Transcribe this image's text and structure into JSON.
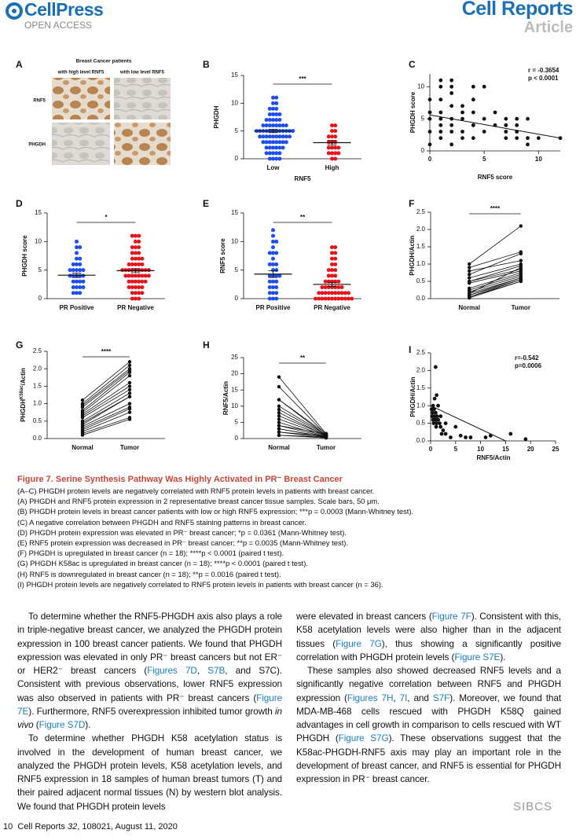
{
  "header": {
    "logo": "CellPress",
    "logo_sub": "OPEN ACCESS",
    "journal": "Cell Reports",
    "article_type": "Article"
  },
  "panel_a": {
    "panel": "A",
    "title": "Breast Cancer patients",
    "col_high": "with high level RNF5",
    "col_low": "with low level RNF5",
    "row_1": "RNF5",
    "row_2": "PHGDH"
  },
  "chart_data": [
    {
      "type": "strip",
      "panel": "B",
      "ylabel": "PHGDH",
      "xlabel": "RNF5",
      "significance": "***",
      "categories": [
        "Low",
        "High"
      ],
      "colors": [
        "#1d4ff0",
        "#e8141c"
      ],
      "values": [
        [
          11,
          11,
          10,
          10,
          9,
          9,
          9,
          8,
          8,
          8,
          8,
          7,
          7,
          7,
          7,
          7,
          6,
          6,
          6,
          6,
          6,
          6,
          6,
          6,
          5,
          5,
          5,
          5,
          5,
          5,
          5,
          5,
          5,
          5,
          5,
          5,
          4,
          4,
          4,
          4,
          4,
          4,
          4,
          4,
          4,
          4,
          3,
          3,
          3,
          3,
          3,
          3,
          3,
          3,
          2,
          2,
          2,
          2,
          2,
          2,
          1,
          1,
          1,
          1,
          1,
          0,
          0,
          0,
          0
        ],
        [
          6,
          6,
          5,
          5,
          4,
          4,
          4,
          3,
          3,
          3,
          2,
          2,
          2,
          2,
          1,
          1,
          1,
          1,
          0,
          0
        ]
      ],
      "means": [
        5.0,
        2.9
      ],
      "sem": [
        0.3,
        0.4
      ],
      "ylim": [
        0,
        15
      ],
      "yticks": [
        0,
        5,
        10,
        15
      ]
    },
    {
      "type": "scatter",
      "panel": "C",
      "ylabel": "PHGDH score",
      "xlabel": "RNF5 score",
      "annotations": [
        "r = -0.3654",
        "p < 0.0001"
      ],
      "color": "#111111",
      "x": [
        0,
        0,
        0,
        0,
        1,
        1,
        1,
        1,
        1,
        1,
        1,
        1,
        2,
        2,
        2,
        2,
        2,
        2,
        2,
        3,
        3,
        3,
        3,
        3,
        4,
        4,
        4,
        4,
        4,
        5,
        5,
        5,
        6,
        6,
        7,
        7,
        7,
        7,
        8,
        8,
        8,
        8,
        9,
        9,
        9,
        10,
        12,
        0,
        2,
        4
      ],
      "y": [
        8,
        5,
        3,
        1,
        11,
        10,
        8,
        6,
        5,
        4,
        3,
        2,
        11,
        9,
        7,
        5,
        4,
        3,
        1,
        7,
        6,
        5,
        3,
        2,
        10,
        8,
        6,
        4,
        2,
        10,
        5,
        3,
        6,
        4,
        5,
        4,
        3,
        2,
        5,
        4,
        3,
        2,
        5,
        2,
        1,
        2,
        2,
        6,
        10,
        4
      ],
      "trendline": {
        "x": [
          0,
          12
        ],
        "y": [
          5.6,
          2.0
        ]
      },
      "xlim": [
        0,
        12
      ],
      "xticks": [
        0,
        5,
        10
      ],
      "ylim": [
        0,
        12
      ],
      "yticks": [
        0,
        5,
        10
      ]
    },
    {
      "type": "strip",
      "panel": "D",
      "ylabel": "PHGDH score",
      "significance": "*",
      "categories": [
        "PR Positive",
        "PR Negative"
      ],
      "colors": [
        "#1d4ff0",
        "#e8141c"
      ],
      "values": [
        [
          10,
          9,
          9,
          8,
          7,
          7,
          6,
          6,
          6,
          5,
          5,
          5,
          5,
          5,
          4,
          4,
          4,
          4,
          4,
          3,
          3,
          3,
          3,
          2,
          2,
          2,
          2,
          1,
          1,
          1
        ],
        [
          11,
          11,
          11,
          10,
          10,
          9,
          9,
          9,
          8,
          8,
          8,
          7,
          7,
          7,
          7,
          6,
          6,
          6,
          6,
          6,
          5,
          5,
          5,
          5,
          5,
          5,
          5,
          5,
          5,
          4,
          4,
          4,
          4,
          4,
          4,
          4,
          4,
          3,
          3,
          3,
          3,
          3,
          3,
          2,
          2,
          2,
          2,
          2,
          1,
          1,
          1,
          1,
          0,
          0,
          0
        ]
      ],
      "means": [
        4.1,
        4.9
      ],
      "sem": [
        0.4,
        0.35
      ],
      "ylim": [
        0,
        15
      ],
      "yticks": [
        0,
        5,
        10,
        15
      ]
    },
    {
      "type": "strip",
      "panel": "E",
      "ylabel": "RNF5 score",
      "significance": "**",
      "categories": [
        "PR Positive",
        "PR Negative"
      ],
      "colors": [
        "#1d4ff0",
        "#e8141c"
      ],
      "values": [
        [
          12,
          11,
          10,
          10,
          9,
          8,
          8,
          8,
          7,
          6,
          6,
          6,
          5,
          5,
          4,
          4,
          4,
          4,
          3,
          3,
          3,
          2,
          2,
          2,
          1,
          1,
          1,
          0,
          0,
          0
        ],
        [
          9,
          9,
          8,
          8,
          7,
          7,
          6,
          6,
          5,
          5,
          5,
          4,
          4,
          4,
          3,
          3,
          3,
          3,
          3,
          2,
          2,
          2,
          2,
          2,
          2,
          2,
          1,
          1,
          1,
          1,
          1,
          1,
          1,
          1,
          1,
          1,
          0,
          0,
          0,
          0,
          0,
          0,
          0,
          0,
          0,
          0,
          0,
          0
        ]
      ],
      "means": [
        4.3,
        2.5
      ],
      "sem": [
        0.6,
        0.35
      ],
      "ylim": [
        0,
        15
      ],
      "yticks": [
        0,
        5,
        10,
        15
      ]
    },
    {
      "type": "paired",
      "panel": "F",
      "ylabel": "PHGDH/Actin",
      "significance": "****",
      "categories": [
        "Normal",
        "Tumor"
      ],
      "color": "#111111",
      "values": [
        [
          1.0,
          2.1
        ],
        [
          0.9,
          1.35
        ],
        [
          0.7,
          1.3
        ],
        [
          0.6,
          1.0
        ],
        [
          0.5,
          0.95
        ],
        [
          0.5,
          0.85
        ],
        [
          0.45,
          0.8
        ],
        [
          0.3,
          0.75
        ],
        [
          0.25,
          0.7
        ],
        [
          0.2,
          0.65
        ],
        [
          0.15,
          0.6
        ],
        [
          0.1,
          0.6
        ],
        [
          0.1,
          0.55
        ],
        [
          0.05,
          0.55
        ],
        [
          0.05,
          0.5
        ],
        [
          0.02,
          0.5
        ],
        [
          0.15,
          0.9
        ],
        [
          0.8,
          1.1
        ]
      ],
      "ylim": [
        0,
        2.5
      ],
      "yticks": [
        {
          "value": 0,
          "label": "0.0"
        },
        0.5,
        {
          "value": 1,
          "label": "1.0"
        },
        1.5,
        {
          "value": 2,
          "label": "2.0"
        },
        2.5
      ]
    },
    {
      "type": "paired",
      "panel": "G",
      "ylabel": "PHGDH",
      "ylabel_sup": "K58ac",
      "ylabel_suffix": "/Actin",
      "significance": "****",
      "categories": [
        "Normal",
        "Tumor"
      ],
      "color": "#111111",
      "values": [
        [
          1.1,
          2.2
        ],
        [
          1.0,
          2.1
        ],
        [
          0.95,
          2.0
        ],
        [
          0.9,
          1.95
        ],
        [
          0.8,
          1.9
        ],
        [
          0.75,
          1.8
        ],
        [
          0.7,
          1.6
        ],
        [
          0.65,
          1.5
        ],
        [
          0.6,
          1.4
        ],
        [
          0.5,
          1.3
        ],
        [
          0.45,
          1.2
        ],
        [
          0.4,
          1.2
        ],
        [
          0.35,
          1.0
        ],
        [
          0.3,
          0.9
        ],
        [
          0.25,
          0.85
        ],
        [
          0.2,
          0.75
        ],
        [
          0.15,
          0.6
        ],
        [
          0.1,
          0.55
        ]
      ],
      "ylim": [
        0,
        2.5
      ],
      "yticks": [
        {
          "value": 0,
          "label": "0.0"
        },
        0.5,
        {
          "value": 1,
          "label": "1.0"
        },
        1.5,
        {
          "value": 2,
          "label": "2.0"
        },
        2.5
      ]
    },
    {
      "type": "paired",
      "panel": "H",
      "ylabel": "RNF5/Actin",
      "significance": "**",
      "categories": [
        "Normal",
        "Tumor"
      ],
      "color": "#111111",
      "values": [
        [
          19,
          1.5
        ],
        [
          16,
          1.2
        ],
        [
          12,
          1.5
        ],
        [
          12,
          1
        ],
        [
          10,
          1.2
        ],
        [
          9,
          1
        ],
        [
          8,
          0.8
        ],
        [
          7,
          1
        ],
        [
          6,
          0.8
        ],
        [
          5,
          0.6
        ],
        [
          4,
          0.5
        ],
        [
          4,
          1.4
        ],
        [
          3,
          0.5
        ],
        [
          3,
          0.4
        ],
        [
          2,
          0.8
        ],
        [
          2,
          0.3
        ],
        [
          1,
          0.2
        ],
        [
          1,
          0.5
        ]
      ],
      "ylim": [
        0,
        25
      ],
      "yticks": [
        0,
        5,
        10,
        15,
        20,
        25
      ]
    },
    {
      "type": "scatter",
      "panel": "I",
      "ylabel": "PHGDH/Actin",
      "xlabel": "RNF5/Actin",
      "annotations": [
        "r=-0.542",
        "p=0.0006"
      ],
      "color": "#111111",
      "x": [
        0.2,
        0.3,
        0.5,
        0.5,
        0.6,
        0.8,
        0.8,
        1,
        1,
        1,
        1.2,
        1.2,
        1.5,
        1.5,
        2,
        2,
        2.5,
        3,
        3,
        4,
        5,
        6,
        7,
        8,
        11,
        12,
        16,
        19,
        0.4,
        0.7,
        0.9,
        1.3,
        1.8,
        2.2,
        0.3,
        1.1
      ],
      "y": [
        0.9,
        0.7,
        1.0,
        0.6,
        0.5,
        1.2,
        0.7,
        2.1,
        0.8,
        0.6,
        1.3,
        0.5,
        1.0,
        0.6,
        0.7,
        0.4,
        0.3,
        0.2,
        0.5,
        0.1,
        0.4,
        0.15,
        0.1,
        0.1,
        0.1,
        0.15,
        0.2,
        0.05,
        0.8,
        0.9,
        0.6,
        0.7,
        0.5,
        0.2,
        0.9,
        0.4
      ],
      "trendline": {
        "x": [
          0,
          15
        ],
        "y": [
          1.0,
          0
        ]
      },
      "xlim": [
        0,
        25
      ],
      "xticks": [
        0,
        5,
        10,
        15,
        20,
        25
      ],
      "ylim": [
        0,
        2.5
      ],
      "yticks": [
        {
          "value": 0,
          "label": "0.0"
        },
        0.5,
        {
          "value": 1,
          "label": "1.0"
        },
        1.5,
        {
          "value": 2,
          "label": "2.0"
        },
        2.5
      ]
    }
  ],
  "caption": {
    "title": "Figure 7. Serine Synthesis Pathway Was Highly Activated in PR⁻ Breast Cancer",
    "lines": [
      "(A–C) PHGDH protein levels are negatively correlated with RNF5 protein levels in patients with breast cancer.",
      "(A) PHGDH and RNF5 protein expression in 2 representative breast cancer tissue samples. Scale bars, 50 μm.",
      "(B) PHGDH protein levels in breast cancer patients with low or high RNF5 expression; ***p = 0.0003 (Mann-Whitney test).",
      "(C) A negative correlation between PHGDH and RNF5 staining patterns in breast cancer.",
      "(D) PHGDH protein expression was elevated in PR⁻ breast cancer; *p = 0.0361 (Mann-Whitney test).",
      "(E) RNF5 protein expression was decreased in PR⁻ breast cancer; **p = 0.0035 (Mann-Whitney test).",
      "(F) PHGDH is upregulated in breast cancer (n = 18); ****p < 0.0001 (paired t test).",
      "(G) PHGDH K58ac is upregulated in breast cancer (n = 18); ****p < 0.0001 (paired t test).",
      "(H) RNF5 is downregulated in breast cancer (n = 18); **p = 0.0016 (paired t test).",
      "(I) PHGDH protein levels are negatively correlated to RNF5 protein levels in patients with breast cancer (n = 36)."
    ]
  },
  "body": {
    "columns": [
      {
        "paragraphs": [
          {
            "runs": [
              {
                "text": "To determine whether the RNF5-PHGDH axis also plays a role in triple-negative breast cancer, we analyzed the PHGDH protein expression in 100 breast cancer patients. We found that PHGDH expression was elevated in only PR⁻ breast cancers but not ER⁻ or HER2⁻ breast cancers ("
              },
              {
                "text": "Figures 7D",
                "style": "link"
              },
              {
                "text": ", "
              },
              {
                "text": "S7B",
                "style": "link"
              },
              {
                "text": ", and S7C). Consistent with previous observations, lower RNF5 expression was also observed in patients with PR⁻ breast cancers ("
              },
              {
                "text": "Figure 7E",
                "style": "link"
              },
              {
                "text": "). Furthermore, RNF5 overexpression inhibited tumor growth "
              },
              {
                "text": "in vivo",
                "style": "italic"
              },
              {
                "text": " ("
              },
              {
                "text": "Figure S7D",
                "style": "link"
              },
              {
                "text": ")."
              }
            ]
          },
          {
            "runs": [
              {
                "text": "To determine whether PHGDH K58 acetylation status is involved in the development of human breast cancer, we analyzed the PHGDH protein levels, K58 acetylation levels, and RNF5 expression in 18 samples of human breast tumors (T) and their paired adjacent normal tissues (N) by western blot analysis. We found that PHGDH protein levels"
              }
            ]
          }
        ]
      },
      {
        "paragraphs": [
          {
            "continued": true,
            "runs": [
              {
                "text": "were elevated in breast cancers ("
              },
              {
                "text": "Figure 7F",
                "style": "link"
              },
              {
                "text": "). Consistent with this, K58 acetylation levels were also higher than in the adjacent tissues ("
              },
              {
                "text": "Figure 7G",
                "style": "link"
              },
              {
                "text": "), thus showing a significantly positive correlation with PHGDH protein levels ("
              },
              {
                "text": "Figure S7E",
                "style": "link"
              },
              {
                "text": ")."
              }
            ]
          },
          {
            "runs": [
              {
                "text": "These samples also showed decreased RNF5 levels and a significantly negative correlation between RNF5 and PHGDH expression ("
              },
              {
                "text": "Figures 7H",
                "style": "link"
              },
              {
                "text": ", "
              },
              {
                "text": "7I",
                "style": "link"
              },
              {
                "text": ", and "
              },
              {
                "text": "S7F",
                "style": "link"
              },
              {
                "text": "). Moreover, we found that MDA-MB-468 cells rescued with PHGDH K58Q gained advantages in cell growth in comparison to cells rescued with WT PHGDH ("
              },
              {
                "text": "Figure S7G",
                "style": "link"
              },
              {
                "text": "). These observations suggest that the K58ac-PHGDH-RNF5 axis may play an important role in the development of breast cancer, and RNF5 is essential for PHGDH expression in PR⁻ breast cancer."
              }
            ]
          }
        ]
      }
    ]
  },
  "footer": {
    "page_number": "10",
    "journal": "Cell Reports",
    "volume": "32",
    "citation": ", 108021, August 11, 2020",
    "watermark": "SIBCS"
  }
}
